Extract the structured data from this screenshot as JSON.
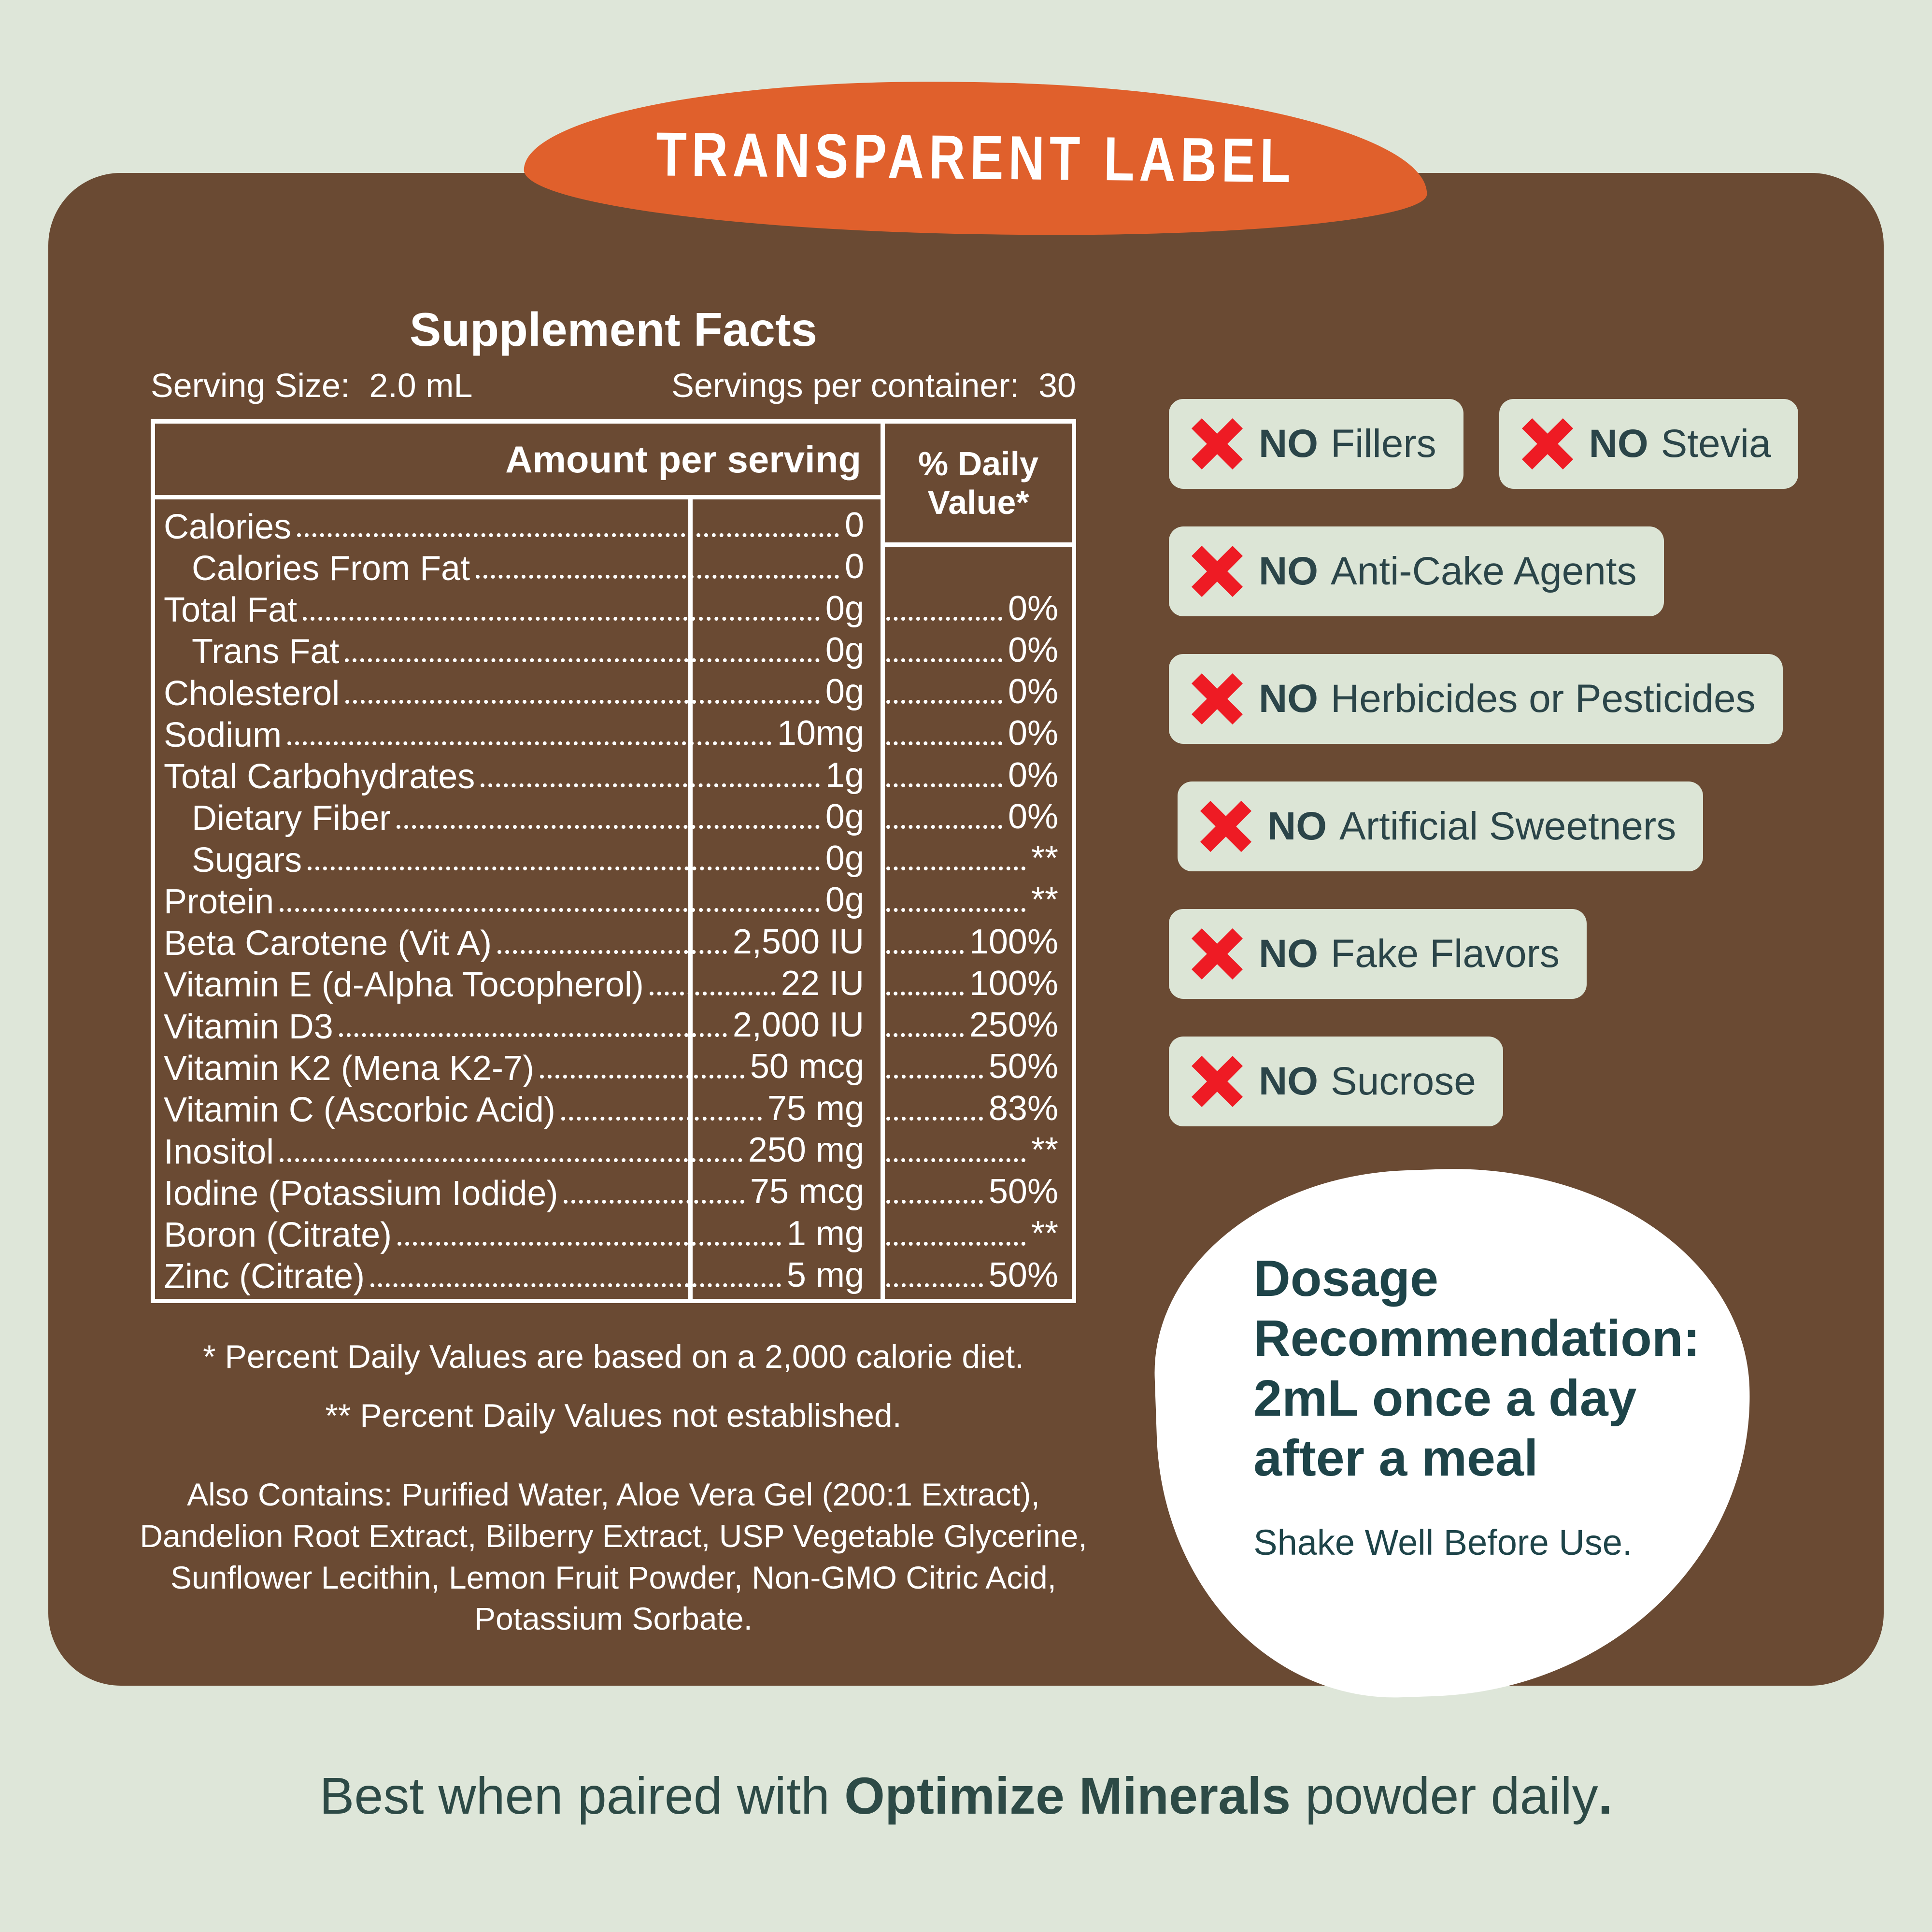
{
  "colors": {
    "page_background": "#dee6d9",
    "panel_brown": "#6a4a33",
    "banner_orange": "#e0602c",
    "badge_background": "#dce5d6",
    "x_red": "#ee1b24",
    "dark_teal_text": "#2b4549",
    "label_text": "#ffffff"
  },
  "banner": {
    "label": "TRANSPARENT LABEL"
  },
  "supplement_facts": {
    "title": "Supplement Facts",
    "serving_size_label": "Serving Size:",
    "serving_size_value": "2.0 mL",
    "servings_per_container_label": "Servings per container:",
    "servings_per_container_value": "30",
    "amount_per_serving_header": "Amount per serving",
    "daily_value_header_line1": "% Daily",
    "daily_value_header_line2": "Value*",
    "rows": [
      {
        "name": "Calories",
        "amount": "0",
        "dv": "",
        "indent": false
      },
      {
        "name": "Calories From Fat",
        "amount": "0",
        "dv": "",
        "indent": true
      },
      {
        "name": "Total Fat",
        "amount": "0g",
        "dv": "0%",
        "indent": false
      },
      {
        "name": "Trans Fat",
        "amount": "0g",
        "dv": "0%",
        "indent": true
      },
      {
        "name": "Cholesterol",
        "amount": "0g",
        "dv": "0%",
        "indent": false
      },
      {
        "name": "Sodium",
        "amount": "10mg",
        "dv": "0%",
        "indent": false
      },
      {
        "name": "Total Carbohydrates",
        "amount": "1g",
        "dv": "0%",
        "indent": false
      },
      {
        "name": "Dietary Fiber",
        "amount": "0g",
        "dv": "0%",
        "indent": true
      },
      {
        "name": "Sugars",
        "amount": "0g",
        "dv": "**",
        "indent": true
      },
      {
        "name": "Protein",
        "amount": "0g",
        "dv": "**",
        "indent": false
      },
      {
        "name": "Beta Carotene (Vit A)",
        "amount": "2,500 IU",
        "dv": "100%",
        "indent": false
      },
      {
        "name": "Vitamin E (d-Alpha Tocopherol)",
        "amount": "22 IU",
        "dv": "100%",
        "indent": false
      },
      {
        "name": "Vitamin D3",
        "amount": "2,000 IU",
        "dv": "250%",
        "indent": false
      },
      {
        "name": "Vitamin K2 (Mena K2-7)",
        "amount": "50 mcg",
        "dv": "50%",
        "indent": false
      },
      {
        "name": "Vitamin C (Ascorbic Acid)",
        "amount": "75 mg",
        "dv": "83%",
        "indent": false
      },
      {
        "name": "Inositol",
        "amount": "250 mg",
        "dv": "**",
        "indent": false
      },
      {
        "name": "Iodine (Potassium Iodide)",
        "amount": "75 mcg",
        "dv": "50%",
        "indent": false
      },
      {
        "name": "Boron (Citrate)",
        "amount": "1 mg",
        "dv": "**",
        "indent": false
      },
      {
        "name": "Zinc (Citrate)",
        "amount": "5 mg",
        "dv": "50%",
        "indent": false
      }
    ],
    "footnote_1": "* Percent Daily Values are based on a 2,000 calorie diet.",
    "footnote_2": "** Percent Daily Values not established.",
    "also_contains": "Also Contains: Purified Water, Aloe Vera Gel (200:1 Extract), Dandelion Root Extract, Bilberry Extract, USP Vegetable Glycerine, Sunflower Lecithin, Lemon Fruit Powder, Non-GMO Citric Acid, Potassium Sorbate."
  },
  "no_badges": [
    {
      "no": "NO",
      "label": "Fillers"
    },
    {
      "no": "NO",
      "label": "Stevia"
    },
    {
      "no": "NO",
      "label": "Anti-Cake Agents"
    },
    {
      "no": "NO",
      "label": "Herbicides or Pesticides"
    },
    {
      "no": "NO",
      "label": "Artificial Sweetners"
    },
    {
      "no": "NO",
      "label": "Fake Flavors"
    },
    {
      "no": "NO",
      "label": "Sucrose"
    }
  ],
  "dosage": {
    "heading": "Dosage Recommendation: 2mL once a day after a meal",
    "note": "Shake Well Before Use."
  },
  "footer": {
    "text_prefix": "Best when paired with ",
    "text_bold": "Optimize Minerals",
    "text_suffix": " powder daily",
    "period": "."
  }
}
